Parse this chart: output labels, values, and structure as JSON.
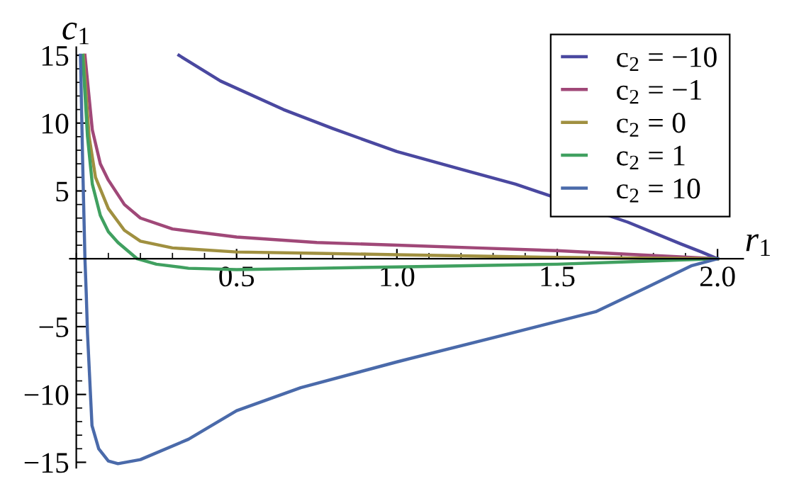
{
  "chart_data": {
    "type": "line",
    "xlabel": "r$_{1}$",
    "ylabel": "c$_{1}$",
    "xlim": [
      -0.02,
      2.08
    ],
    "ylim": [
      -15.4,
      15.6
    ],
    "xticks": [
      {
        "value": 0.5,
        "label": "0.5"
      },
      {
        "value": 1.0,
        "label": "1.0"
      },
      {
        "value": 1.5,
        "label": "1.5"
      },
      {
        "value": 2.0,
        "label": "2.0"
      }
    ],
    "yticks": [
      -15,
      -10,
      -5,
      5,
      10,
      15
    ],
    "grid": false,
    "legend": "top right",
    "marker": "none",
    "line_style": "solid",
    "series": [
      {
        "name": "c$_{2}$ = −10",
        "color": "#4a48a0",
        "x": [
          0.32,
          0.45,
          0.646,
          0.8,
          1.0,
          1.2,
          1.37,
          1.72,
          1.885,
          1.95,
          2.0
        ],
        "values": [
          15,
          13.1,
          11.0,
          9.6,
          7.9,
          6.6,
          5.5,
          2.7,
          1.1,
          0.5,
          0
        ]
      },
      {
        "name": "c$_{2}$ = −1",
        "color": "#a04878",
        "x": [
          0.027,
          0.05,
          0.075,
          0.1,
          0.15,
          0.2,
          0.3,
          0.5,
          0.75,
          1.0,
          1.25,
          1.5,
          1.75,
          2.0
        ],
        "values": [
          15,
          9.5,
          7,
          5.8,
          4,
          3.0,
          2.2,
          1.6,
          1.2,
          1.0,
          0.8,
          0.6,
          0.3,
          0
        ]
      },
      {
        "name": "c$_{2}$ = 0",
        "color": "#a09040",
        "x": [
          0.022,
          0.04,
          0.06,
          0.1,
          0.15,
          0.2,
          0.3,
          0.5,
          0.75,
          1.0,
          1.5,
          2.0
        ],
        "values": [
          15,
          9,
          6,
          3.7,
          2.1,
          1.3,
          0.8,
          0.5,
          0.4,
          0.3,
          0.1,
          0
        ]
      },
      {
        "name": "c$_{2}$ = 1",
        "color": "#40a060",
        "x": [
          0.02,
          0.035,
          0.05,
          0.075,
          0.1,
          0.13,
          0.16,
          0.19,
          0.25,
          0.35,
          0.5,
          0.75,
          1.0,
          1.25,
          1.5,
          1.75,
          2.0
        ],
        "values": [
          15,
          9,
          5.5,
          3.2,
          2.0,
          1.2,
          0.6,
          0,
          -0.4,
          -0.7,
          -0.8,
          -0.7,
          -0.6,
          -0.5,
          -0.4,
          -0.2,
          0
        ]
      },
      {
        "name": "c$_{2}$ = 10",
        "color": "#4a6aaa",
        "x": [
          0.013,
          0.02,
          0.027,
          0.031,
          0.035,
          0.049,
          0.07,
          0.1,
          0.13,
          0.2,
          0.35,
          0.5,
          0.7,
          1.0,
          1.32,
          1.62,
          1.78,
          1.92,
          2.0
        ],
        "values": [
          15,
          7,
          0,
          -2.5,
          -5.5,
          -12.3,
          -14,
          -14.9,
          -15.1,
          -14.8,
          -13.3,
          -11.2,
          -9.5,
          -7.6,
          -5.7,
          -3.9,
          -2.1,
          -0.5,
          0
        ]
      }
    ]
  }
}
